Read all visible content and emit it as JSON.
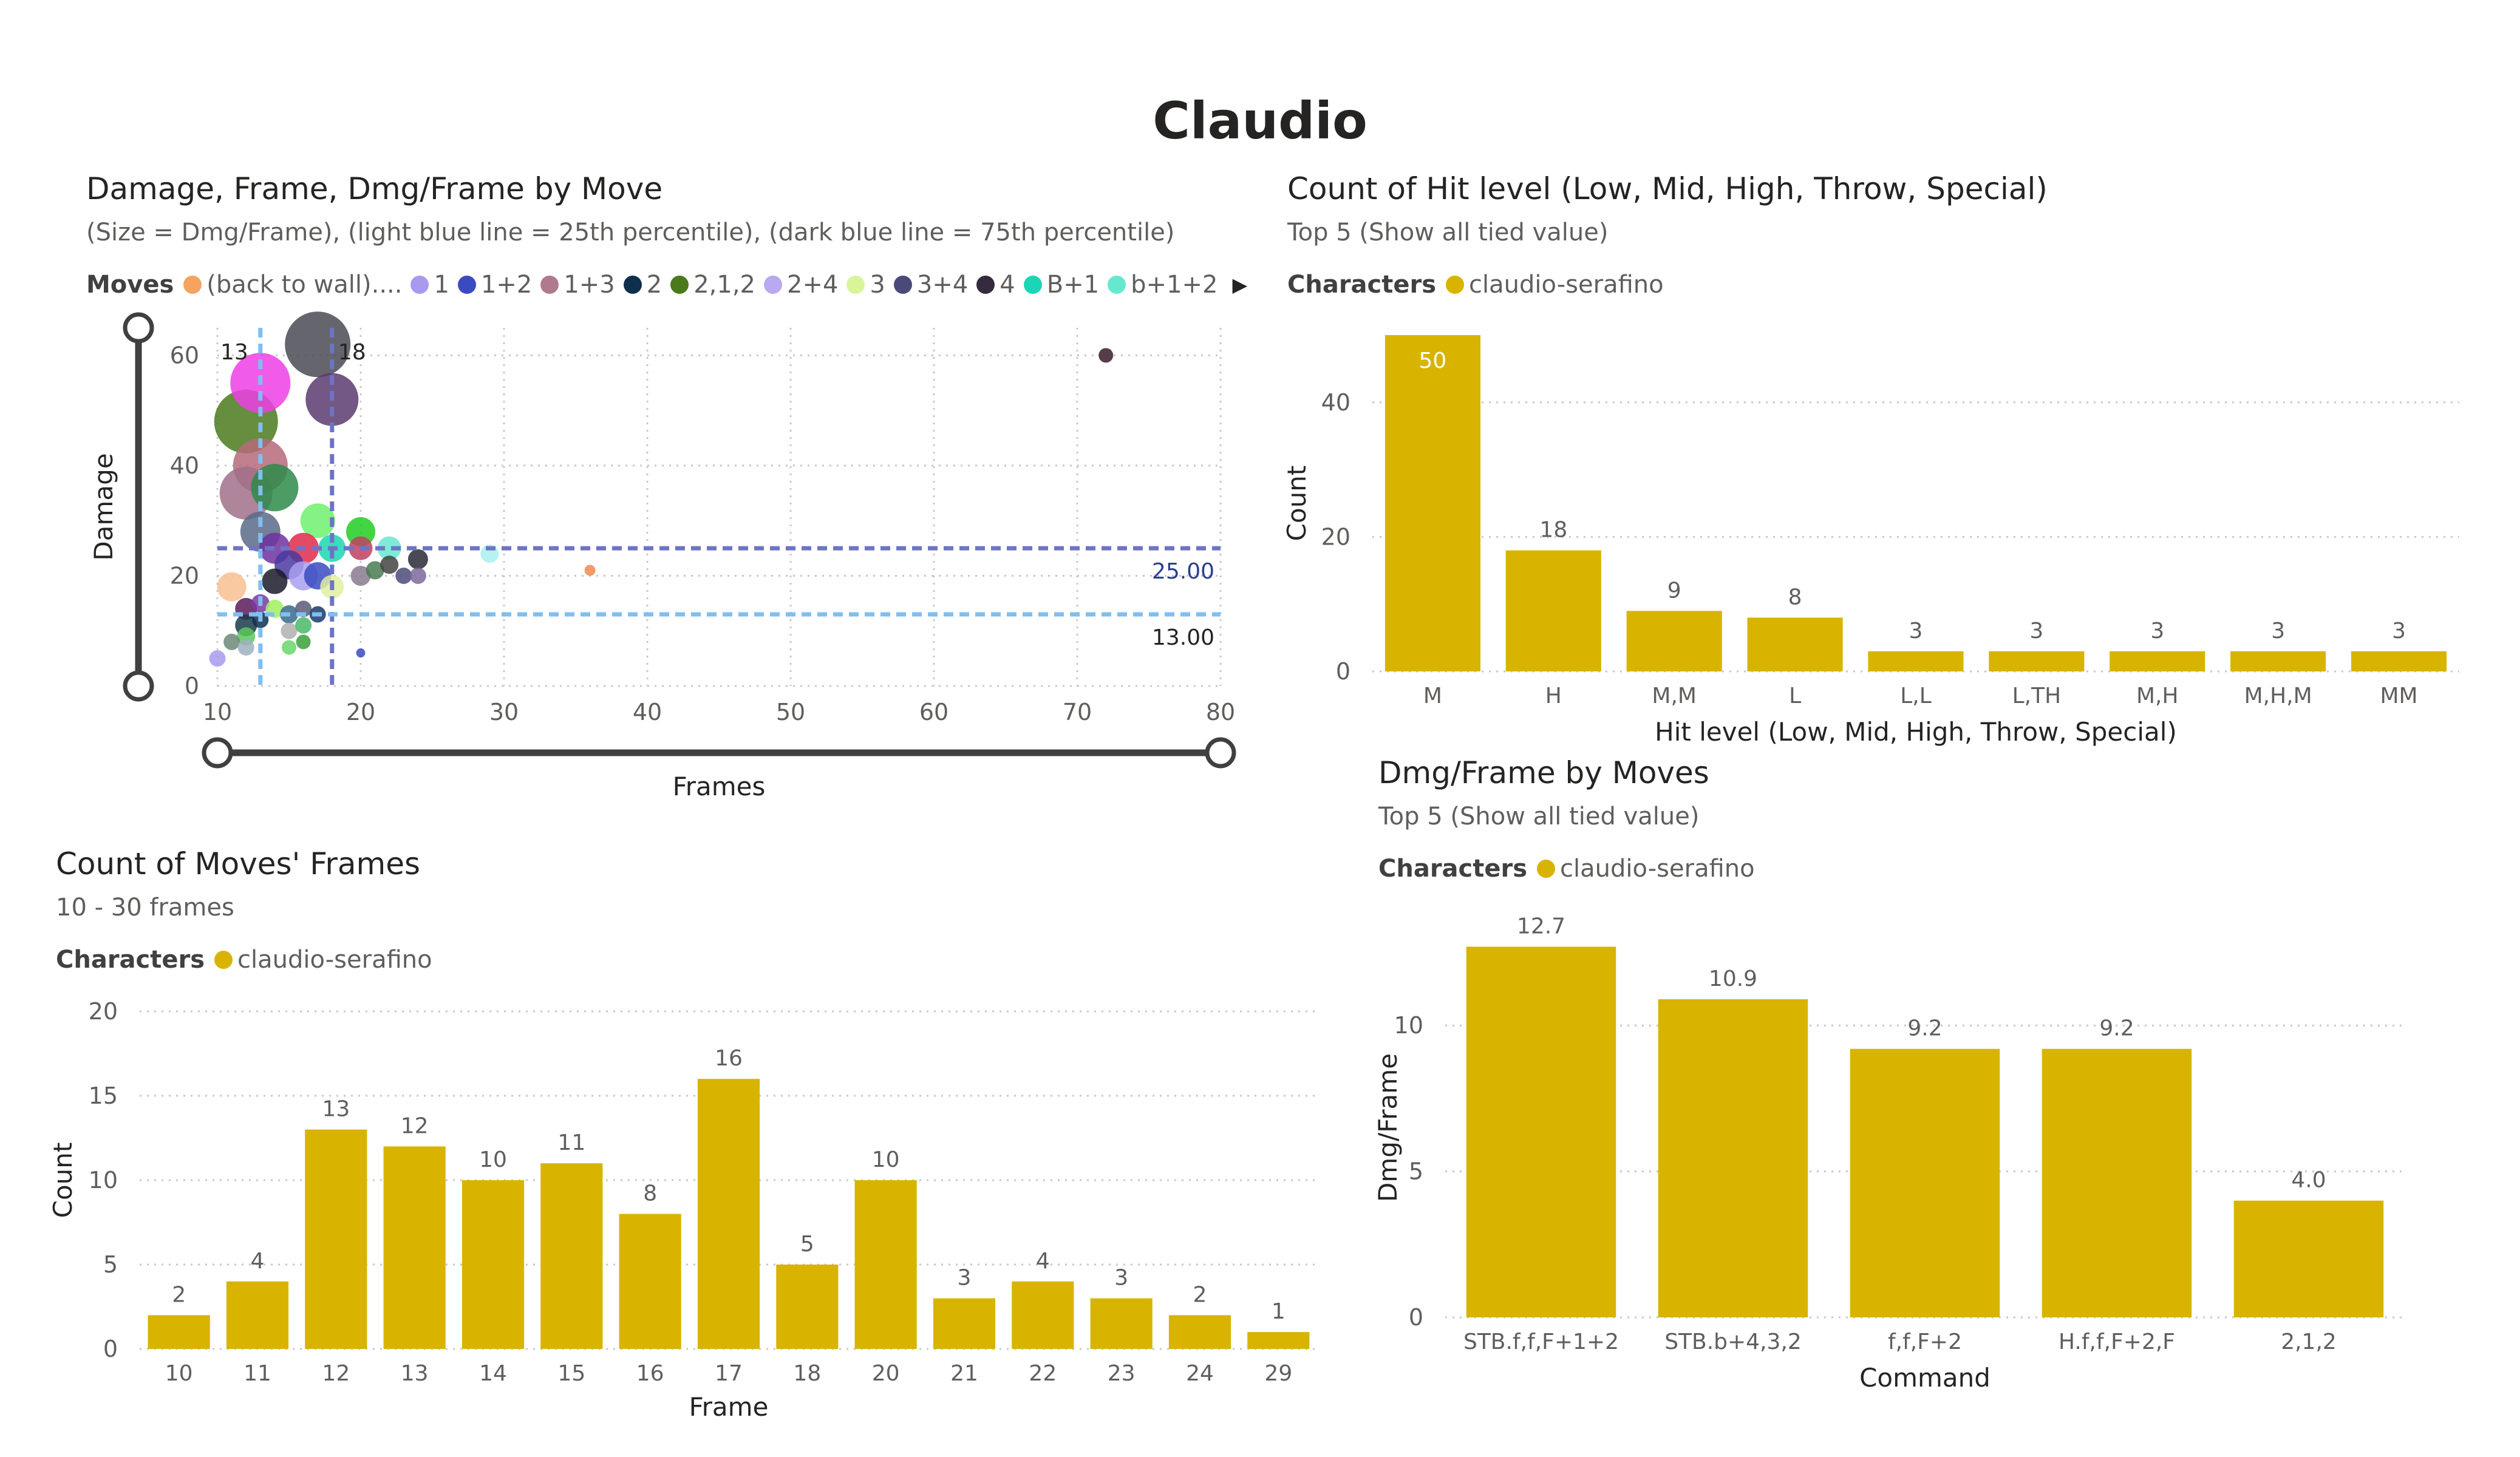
{
  "page": {
    "title": "Claudio"
  },
  "scatter": {
    "title": "Damage, Frame, Dmg/Frame by Move",
    "subtitle": "(Size = Dmg/Frame), (light blue line = 25th percentile), (dark blue line = 75th percentile)",
    "legend": {
      "title": "Moves",
      "items": [
        {
          "label": "(back to wall)....",
          "color": "#f4a460"
        },
        {
          "label": "1",
          "color": "#a99af0"
        },
        {
          "label": "1+2",
          "color": "#3a4bc2"
        },
        {
          "label": "1+3",
          "color": "#b07a8e"
        },
        {
          "label": "2",
          "color": "#0e2f4e"
        },
        {
          "label": "2,1,2",
          "color": "#4a7a1c"
        },
        {
          "label": "2+4",
          "color": "#b8a9f0"
        },
        {
          "label": "3",
          "color": "#d9f59a"
        },
        {
          "label": "3+4",
          "color": "#4a4a7a"
        },
        {
          "label": "4",
          "color": "#362a3e"
        },
        {
          "label": "B+1",
          "color": "#1ad6b4"
        },
        {
          "label": "b+1+2",
          "color": "#66e8d0"
        }
      ],
      "more_icon": "chevron-right-icon"
    },
    "ref_labels": {
      "p25": "13",
      "p75": "18"
    },
    "hline_labels": {
      "dark": "25.00",
      "light": "13.00"
    }
  },
  "hit": {
    "title": "Count of Hit level (Low, Mid, High, Throw, Special)",
    "subtitle": "Top 5 (Show all tied value)",
    "legend": {
      "title": "Characters",
      "label": "claudio-serafino",
      "color": "#d8b400"
    }
  },
  "dmg": {
    "title": "Dmg/Frame by Moves",
    "subtitle": "Top 5 (Show all tied value)",
    "legend": {
      "title": "Characters",
      "label": "claudio-serafino",
      "color": "#d8b400"
    }
  },
  "frames": {
    "title": "Count of Moves' Frames",
    "subtitle": "10 - 30 frames",
    "legend": {
      "title": "Characters",
      "label": "claudio-serafino",
      "color": "#d8b400"
    }
  },
  "chart_data": [
    {
      "type": "scatter",
      "title": "Damage, Frame, Dmg/Frame by Move",
      "xlabel": "Frames",
      "ylabel": "Damage",
      "xlim": [
        10,
        80
      ],
      "ylim": [
        0,
        65
      ],
      "xticks": [
        "10",
        "20",
        "30",
        "40",
        "50",
        "60",
        "70",
        "80"
      ],
      "yticks": [
        "0",
        "20",
        "40",
        "60"
      ],
      "grid": true,
      "reference_lines": {
        "x_25th": 13,
        "x_75th": 18,
        "y_25th": 13,
        "y_75th": 25
      },
      "points": [
        {
          "x": 17,
          "y": 62,
          "size": 3.6,
          "color": "#4a4a55"
        },
        {
          "x": 13,
          "y": 55,
          "size": 3.3,
          "color": "#ee3ee6"
        },
        {
          "x": 18,
          "y": 52,
          "size": 2.9,
          "color": "#5a3a70"
        },
        {
          "x": 12,
          "y": 48,
          "size": 3.5,
          "color": "#4a7a1c"
        },
        {
          "x": 13,
          "y": 40,
          "size": 3.0,
          "color": "#b56a7a"
        },
        {
          "x": 14,
          "y": 36,
          "size": 2.6,
          "color": "#2e8a4a"
        },
        {
          "x": 12,
          "y": 35,
          "size": 2.9,
          "color": "#a07088"
        },
        {
          "x": 17,
          "y": 30,
          "size": 1.9,
          "color": "#6ef06e"
        },
        {
          "x": 13,
          "y": 28,
          "size": 2.2,
          "color": "#5a6a88"
        },
        {
          "x": 20,
          "y": 28,
          "size": 1.6,
          "color": "#22cc22"
        },
        {
          "x": 14,
          "y": 25,
          "size": 1.7,
          "color": "#7030a0"
        },
        {
          "x": 16,
          "y": 25,
          "size": 1.7,
          "color": "#e02a4a"
        },
        {
          "x": 18,
          "y": 25,
          "size": 1.5,
          "color": "#1ad6b4"
        },
        {
          "x": 20,
          "y": 25,
          "size": 1.3,
          "color": "#c04060"
        },
        {
          "x": 22,
          "y": 25,
          "size": 1.3,
          "color": "#66e8d0"
        },
        {
          "x": 24,
          "y": 23,
          "size": 1.1,
          "color": "#2a2a3a"
        },
        {
          "x": 29,
          "y": 24,
          "size": 1.0,
          "color": "#aaf0f0"
        },
        {
          "x": 15,
          "y": 22,
          "size": 1.6,
          "color": "#4a3aa0"
        },
        {
          "x": 16,
          "y": 20,
          "size": 1.6,
          "color": "#a9a0f0"
        },
        {
          "x": 17,
          "y": 20,
          "size": 1.5,
          "color": "#3a4bc2"
        },
        {
          "x": 20,
          "y": 20,
          "size": 1.1,
          "color": "#8a7a90"
        },
        {
          "x": 21,
          "y": 21,
          "size": 1.0,
          "color": "#4a7a50"
        },
        {
          "x": 22,
          "y": 22,
          "size": 1.0,
          "color": "#444444"
        },
        {
          "x": 23,
          "y": 20,
          "size": 0.9,
          "color": "#4a4a7a"
        },
        {
          "x": 24,
          "y": 20,
          "size": 0.9,
          "color": "#7a6a9a"
        },
        {
          "x": 11,
          "y": 18,
          "size": 1.6,
          "color": "#f8c090"
        },
        {
          "x": 14,
          "y": 19,
          "size": 1.4,
          "color": "#1a1a2a"
        },
        {
          "x": 18,
          "y": 18,
          "size": 1.3,
          "color": "#e0f0a0"
        },
        {
          "x": 36,
          "y": 21,
          "size": 0.6,
          "color": "#f08850"
        },
        {
          "x": 12,
          "y": 14,
          "size": 1.2,
          "color": "#5a1a5a"
        },
        {
          "x": 13,
          "y": 15,
          "size": 1.0,
          "color": "#7a3aa0"
        },
        {
          "x": 14,
          "y": 14,
          "size": 1.0,
          "color": "#a0f060"
        },
        {
          "x": 15,
          "y": 13,
          "size": 1.0,
          "color": "#3a6a8a"
        },
        {
          "x": 16,
          "y": 14,
          "size": 0.9,
          "color": "#5a5a7a"
        },
        {
          "x": 17,
          "y": 13,
          "size": 0.9,
          "color": "#1a3a6a"
        },
        {
          "x": 12,
          "y": 11,
          "size": 1.2,
          "color": "#1a3a4a"
        },
        {
          "x": 13,
          "y": 12,
          "size": 0.9,
          "color": "#0e2f4e"
        },
        {
          "x": 15,
          "y": 10,
          "size": 0.9,
          "color": "#b0b0b0"
        },
        {
          "x": 16,
          "y": 11,
          "size": 0.9,
          "color": "#4ab86a"
        },
        {
          "x": 12,
          "y": 9,
          "size": 1.0,
          "color": "#5ac85a"
        },
        {
          "x": 11,
          "y": 8,
          "size": 0.9,
          "color": "#6a8a7a"
        },
        {
          "x": 12,
          "y": 7,
          "size": 0.9,
          "color": "#a0b0c0"
        },
        {
          "x": 15,
          "y": 7,
          "size": 0.8,
          "color": "#6ad66a"
        },
        {
          "x": 16,
          "y": 8,
          "size": 0.8,
          "color": "#3aa03a"
        },
        {
          "x": 10,
          "y": 5,
          "size": 0.9,
          "color": "#a99af0"
        },
        {
          "x": 20,
          "y": 6,
          "size": 0.5,
          "color": "#3a4bc2"
        },
        {
          "x": 72,
          "y": 60,
          "size": 0.8,
          "color": "#3a1a2a"
        }
      ]
    },
    {
      "type": "bar",
      "title": "Count of Hit level (Low, Mid, High, Throw, Special)",
      "xlabel": "Hit level (Low, Mid, High, Throw, Special)",
      "ylabel": "Count",
      "categories": [
        "M",
        "H",
        "M,M",
        "L",
        "L,L",
        "L,TH",
        "M,H",
        "M,H,M",
        "MM"
      ],
      "values": [
        50,
        18,
        9,
        8,
        3,
        3,
        3,
        3,
        3
      ],
      "ylim": [
        0,
        50
      ],
      "yticks": [
        "0",
        "20",
        "40"
      ],
      "series_name": "claudio-serafino"
    },
    {
      "type": "bar",
      "title": "Dmg/Frame by Moves",
      "xlabel": "Command",
      "ylabel": "Dmg/Frame",
      "categories": [
        "STB.f,f,F+1+2",
        "STB.b+4,3,2",
        "f,f,F+2",
        "H.f,f,F+2,F",
        "2,1,2"
      ],
      "values": [
        12.7,
        10.9,
        9.2,
        9.2,
        4.0
      ],
      "value_labels": [
        "12.7",
        "10.9",
        "9.2",
        "9.2",
        "4.0"
      ],
      "ylim": [
        0,
        13
      ],
      "yticks": [
        "0",
        "5",
        "10"
      ],
      "series_name": "claudio-serafino"
    },
    {
      "type": "bar",
      "title": "Count of Moves' Frames",
      "xlabel": "Frame",
      "ylabel": "Count",
      "categories": [
        "10",
        "11",
        "12",
        "13",
        "14",
        "15",
        "16",
        "17",
        "18",
        "20",
        "21",
        "22",
        "23",
        "24",
        "29"
      ],
      "values": [
        2,
        4,
        13,
        12,
        10,
        11,
        8,
        16,
        5,
        10,
        3,
        4,
        3,
        2,
        1
      ],
      "ylim": [
        0,
        20
      ],
      "yticks": [
        "0",
        "5",
        "10",
        "15",
        "20"
      ],
      "series_name": "claudio-serafino"
    }
  ]
}
